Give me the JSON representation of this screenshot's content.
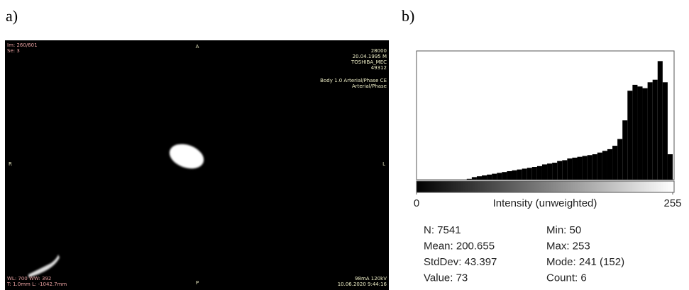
{
  "panel_labels": [
    "a)",
    "b)"
  ],
  "image_panel": {
    "top_left": [
      "Im: 260/601",
      "Se: 3"
    ],
    "top_right": [
      "28000",
      "20.04.1995 M",
      "TOSHIBA_MEC",
      "49312",
      "Body 1.0 Arterial/Phase CE",
      "Arterial/Phase"
    ],
    "orientation": {
      "top": "A",
      "left": "R",
      "right": "L",
      "bottom": "P"
    },
    "bottom_left": [
      "WL: 700 WW: 392",
      "T: 1.0mm L: -1042.7mm"
    ],
    "bottom_right": [
      "98mA 120kV",
      "10.06.2020 9:44:16"
    ]
  },
  "chart_data": {
    "type": "histogram",
    "x_label": "Intensity (unweighted)",
    "bins": [
      50,
      55,
      60,
      65,
      70,
      75,
      80,
      85,
      90,
      95,
      100,
      105,
      110,
      115,
      120,
      125,
      130,
      135,
      140,
      145,
      150,
      155,
      160,
      165,
      170,
      175,
      180,
      185,
      190,
      195,
      200,
      205,
      210,
      215,
      220,
      225,
      230,
      235,
      240,
      245,
      250,
      255
    ],
    "values": [
      1,
      3,
      4,
      5,
      6,
      7,
      8,
      9,
      10,
      11,
      12,
      13,
      14,
      15,
      16,
      18,
      19,
      20,
      22,
      23,
      25,
      26,
      27,
      28,
      29,
      30,
      32,
      34,
      36,
      40,
      48,
      70,
      105,
      112,
      110,
      108,
      115,
      118,
      140,
      115,
      30
    ],
    "color": "#000000",
    "xlim": [
      0,
      255
    ],
    "xticks": [
      0,
      255
    ],
    "ylim": [
      0,
      152
    ]
  },
  "stats": [
    [
      "N: 7541",
      "Mean: 200.655",
      "StdDev: 43.397",
      "Value: 73"
    ],
    [
      "Min: 50",
      "Max: 253",
      "Mode: 241 (152)",
      "Count: 6"
    ]
  ]
}
